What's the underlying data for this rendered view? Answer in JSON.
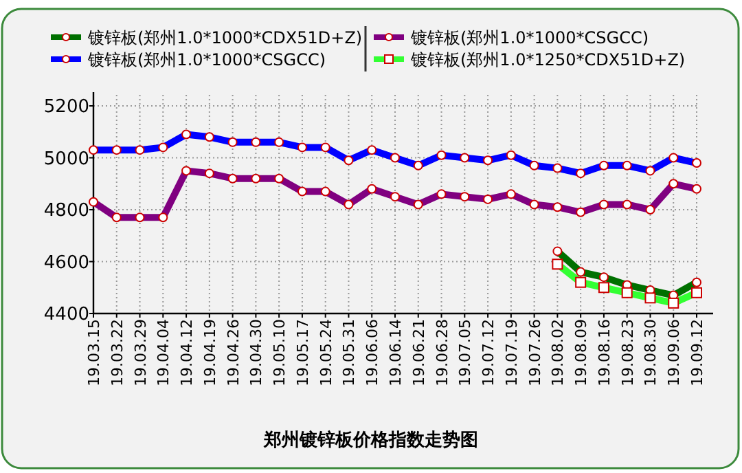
{
  "chart_data": {
    "type": "line",
    "title": "郑州镀锌板价格指数走势图",
    "categories": [
      "19.03.15",
      "19.03.22",
      "19.03.29",
      "19.04.04",
      "19.04.12",
      "19.04.19",
      "19.04.26",
      "19.04.30",
      "19.05.10",
      "19.05.17",
      "19.05.24",
      "19.05.31",
      "19.06.06",
      "19.06.14",
      "19.06.21",
      "19.06.28",
      "19.07.05",
      "19.07.12",
      "19.07.19",
      "19.07.26",
      "19.08.02",
      "19.08.09",
      "19.08.16",
      "19.08.23",
      "19.08.30",
      "19.09.06",
      "19.09.12"
    ],
    "series": [
      {
        "name": "镀锌板(郑州1.0*1000*CDX51D+Z)",
        "color": "#007000",
        "marker": "circle",
        "values": [
          null,
          null,
          null,
          null,
          null,
          null,
          null,
          null,
          null,
          null,
          null,
          null,
          null,
          null,
          null,
          null,
          null,
          null,
          null,
          null,
          4640,
          4560,
          4540,
          4510,
          4490,
          4470,
          4520
        ]
      },
      {
        "name": "镀锌板(郑州1.0*1000*CSGCC)",
        "color": "#800080",
        "marker": "circle",
        "values": [
          4830,
          4770,
          4770,
          4770,
          4950,
          4940,
          4920,
          4920,
          4920,
          4870,
          4870,
          4820,
          4880,
          4850,
          4820,
          4860,
          4850,
          4840,
          4860,
          4820,
          4810,
          4790,
          4820,
          4820,
          4800,
          4900,
          4880
        ]
      },
      {
        "name": "镀锌板(郑州1.0*1000*CSGCC)",
        "color": "#0000ff",
        "marker": "circle",
        "values": [
          5030,
          5030,
          5030,
          5040,
          5090,
          5080,
          5060,
          5060,
          5060,
          5040,
          5040,
          4990,
          5030,
          5000,
          4970,
          5010,
          5000,
          4990,
          5010,
          4970,
          4960,
          4940,
          4970,
          4970,
          4950,
          5000,
          4980
        ]
      },
      {
        "name": "镀锌板(郑州1.0*1250*CDX51D+Z)",
        "color": "#33ff33",
        "marker": "square",
        "values": [
          null,
          null,
          null,
          null,
          null,
          null,
          null,
          null,
          null,
          null,
          null,
          null,
          null,
          null,
          null,
          null,
          null,
          null,
          null,
          null,
          4590,
          4520,
          4500,
          4480,
          4460,
          4440,
          4480
        ]
      }
    ],
    "ylim": [
      4400,
      5200
    ],
    "yticks": [
      4400,
      4600,
      4800,
      5000,
      5200
    ],
    "grid": true,
    "legend": "top",
    "line_style": "solid"
  }
}
